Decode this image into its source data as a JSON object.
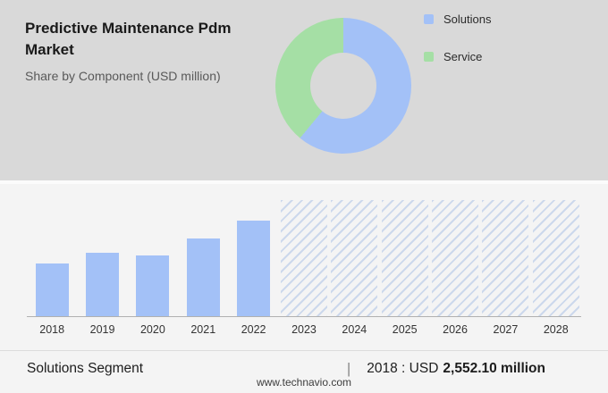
{
  "header": {
    "title": "Predictive Maintenance Pdm Market",
    "subtitle": "Share by Component (USD million)"
  },
  "chart_data": [
    {
      "type": "pie",
      "donut": true,
      "title": "Share by Component (USD million)",
      "labels": [
        "Solutions",
        "Service"
      ],
      "values": [
        61,
        39
      ],
      "colors": [
        "#a3c1f7",
        "#a5dfa5"
      ],
      "legend_position": "right"
    },
    {
      "type": "bar",
      "categories": [
        "2018",
        "2019",
        "2020",
        "2021",
        "2022",
        "2023",
        "2024",
        "2025",
        "2026",
        "2027",
        "2028"
      ],
      "values": [
        2552.1,
        3080,
        2950,
        3740,
        4620,
        null,
        null,
        null,
        null,
        null,
        null
      ],
      "forecast_categories": [
        "2023",
        "2024",
        "2025",
        "2026",
        "2027",
        "2028"
      ],
      "title": "",
      "xlabel": "",
      "ylabel": "",
      "ylim": [
        0,
        5600
      ],
      "bar_color": "#a3c1f7",
      "grid": false,
      "annotation": "2018 : USD 2,552.10 million"
    }
  ],
  "footer": {
    "segment_label": "Solutions Segment",
    "separator": "|",
    "value_prefix": "2018 : USD",
    "value_bold": "2,552.10 million",
    "website": "www.technavio.com"
  }
}
